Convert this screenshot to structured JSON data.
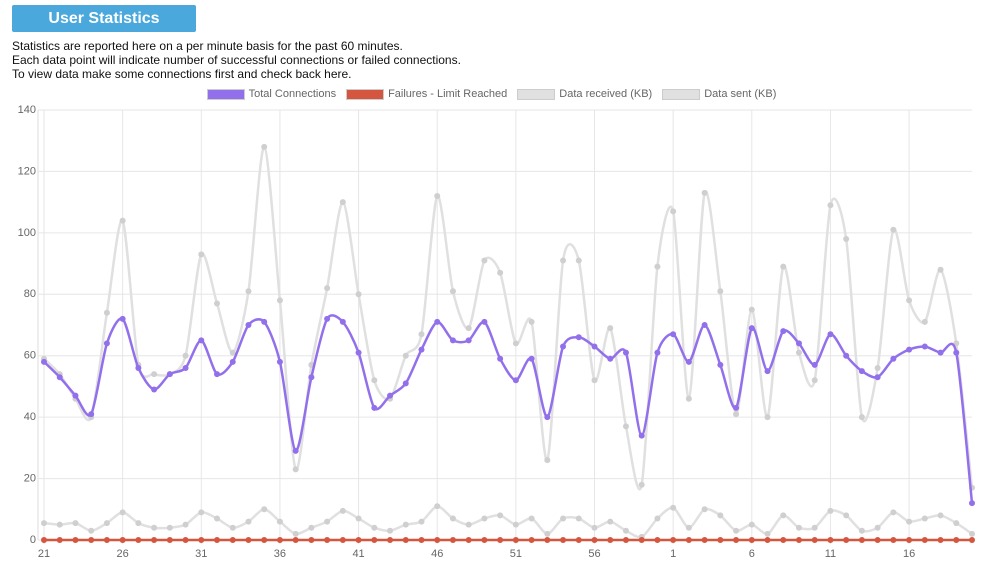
{
  "header": {
    "title": "User Statistics"
  },
  "description": [
    "Statistics are reported here on a per minute basis for the past 60 minutes.",
    "Each data point will indicate number of successful connections or failed connections.",
    "To view data make some connections first and check back here."
  ],
  "chart_data": {
    "type": "line",
    "categories": [
      "21",
      null,
      null,
      null,
      null,
      "26",
      null,
      null,
      null,
      null,
      "31",
      null,
      null,
      null,
      null,
      "36",
      null,
      null,
      null,
      null,
      "41",
      null,
      null,
      null,
      null,
      "46",
      null,
      null,
      null,
      null,
      "51",
      null,
      null,
      null,
      null,
      "56",
      null,
      null,
      null,
      null,
      "1",
      null,
      null,
      null,
      null,
      "6",
      null,
      null,
      null,
      null,
      "11",
      null,
      null,
      null,
      null,
      "16",
      null,
      null,
      null,
      null
    ],
    "ylim": [
      0,
      140
    ],
    "yticks": [
      0,
      20,
      40,
      60,
      80,
      100,
      120,
      140
    ],
    "grid": true,
    "legend": "top",
    "series": [
      {
        "name": "Total Connections",
        "color": "#9370eb",
        "values": [
          58,
          53,
          47,
          41,
          64,
          72,
          56,
          49,
          54,
          56,
          65,
          54,
          58,
          70,
          71,
          58,
          29,
          53,
          72,
          71,
          61,
          43,
          47,
          51,
          62,
          71,
          65,
          65,
          71,
          59,
          52,
          59,
          40,
          63,
          66,
          63,
          59,
          61,
          34,
          61,
          67,
          58,
          70,
          57,
          43,
          69,
          55,
          68,
          64,
          57,
          67,
          60,
          55,
          53,
          59,
          62,
          63,
          61,
          61,
          12
        ]
      },
      {
        "name": "Failures - Limit Reached",
        "color": "#d4563f",
        "values": [
          0,
          0,
          0,
          0,
          0,
          0,
          0,
          0,
          0,
          0,
          0,
          0,
          0,
          0,
          0,
          0,
          0,
          0,
          0,
          0,
          0,
          0,
          0,
          0,
          0,
          0,
          0,
          0,
          0,
          0,
          0,
          0,
          0,
          0,
          0,
          0,
          0,
          0,
          0,
          0,
          0,
          0,
          0,
          0,
          0,
          0,
          0,
          0,
          0,
          0,
          0,
          0,
          0,
          0,
          0,
          0,
          0,
          0,
          0,
          0
        ]
      },
      {
        "name": "Data received (KB)",
        "color": "#e0e0e0",
        "values": [
          59,
          54,
          46,
          40,
          74,
          104,
          57,
          54,
          54,
          60,
          93,
          77,
          61,
          81,
          128,
          78,
          23,
          57,
          82,
          110,
          80,
          52,
          46,
          60,
          67,
          112,
          81,
          69,
          91,
          87,
          64,
          71,
          26,
          91,
          91,
          52,
          69,
          37,
          18,
          89,
          107,
          46,
          113,
          81,
          41,
          75,
          40,
          89,
          61,
          52,
          109,
          98,
          40,
          56,
          101,
          78,
          71,
          88,
          64,
          17
        ]
      },
      {
        "name": "Data sent (KB)",
        "color": "#e0e0e0",
        "values": [
          5.5,
          5,
          5.5,
          3,
          5.5,
          9,
          5.5,
          4,
          4,
          5,
          9,
          7,
          4,
          6,
          10,
          6,
          2,
          4,
          6,
          9.5,
          7,
          4,
          3,
          5,
          6,
          11,
          7,
          5,
          7,
          8,
          5,
          7,
          2,
          7,
          7,
          4,
          6,
          3,
          1,
          7,
          10.5,
          4,
          10,
          8,
          3,
          5,
          2,
          8,
          4,
          4,
          9.5,
          8,
          3,
          4,
          9,
          6,
          7,
          8,
          5.5,
          2
        ]
      }
    ]
  }
}
